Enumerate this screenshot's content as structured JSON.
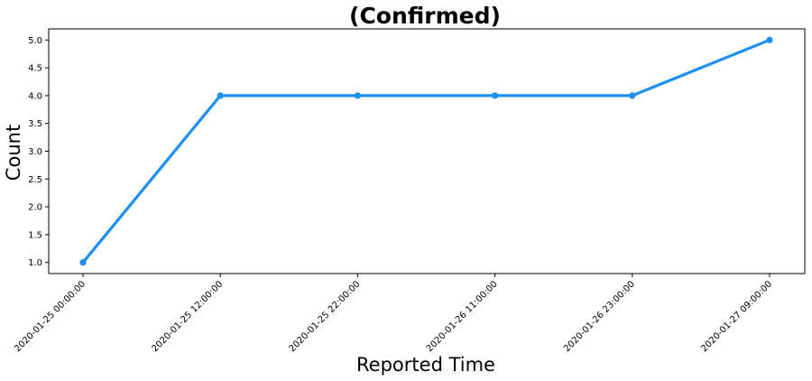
{
  "chart_data": {
    "type": "line",
    "title": "(Confirmed)",
    "xlabel": "Reported Time",
    "ylabel": "Count",
    "categories": [
      "2020-01-25 00:00:00",
      "2020-01-25 12:00:00",
      "2020-01-25 22:00:00",
      "2020-01-26 11:00:00",
      "2020-01-26 23:00:00",
      "2020-01-27 09:00:00"
    ],
    "values": [
      1,
      4,
      4,
      4,
      4,
      5
    ],
    "ylim": [
      0.8,
      5.2
    ],
    "yticks": [
      "1.0",
      "1.5",
      "2.0",
      "2.5",
      "3.0",
      "3.5",
      "4.0",
      "4.5",
      "5.0"
    ],
    "grid": false,
    "legend": "none",
    "color": "#1f8ff0",
    "marker": "circle"
  }
}
